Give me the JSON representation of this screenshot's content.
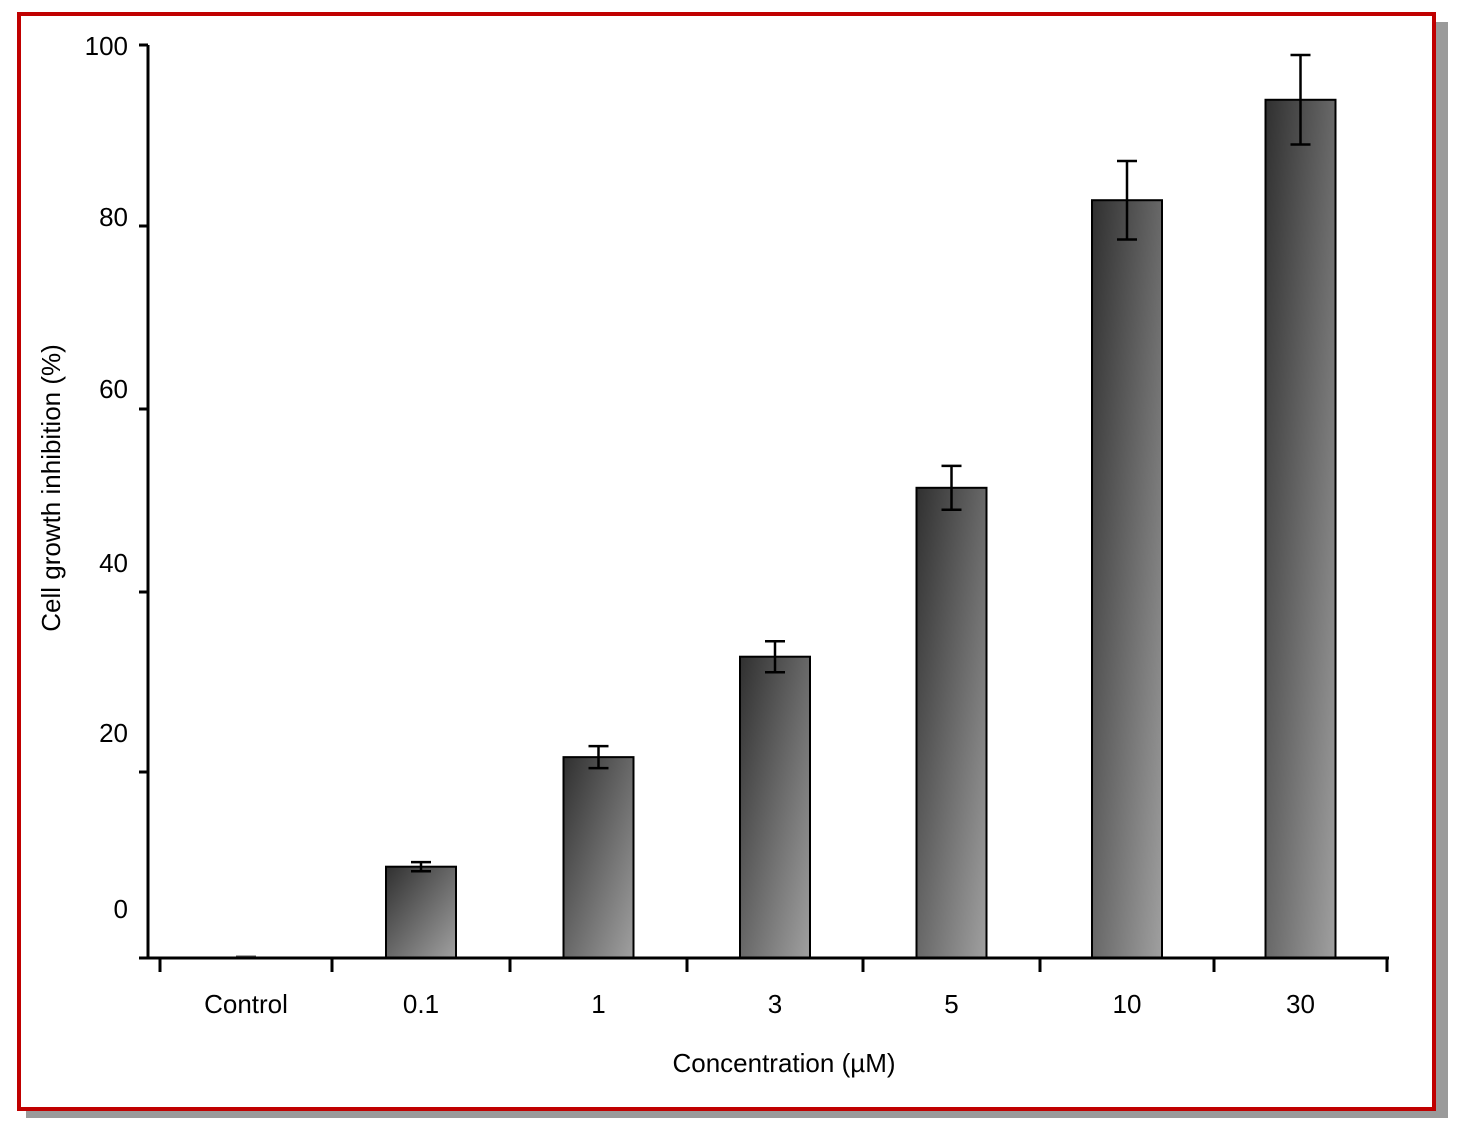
{
  "chart_data": {
    "type": "bar",
    "title": "",
    "xlabel": "Concentration (µM)",
    "ylabel": "Cell growth inhibition (%)",
    "ylim": [
      0,
      100
    ],
    "yticks": [
      "100",
      "80",
      "60",
      "40",
      "20",
      "0"
    ],
    "categories": [
      "Control",
      "0.1",
      "1",
      "3",
      "5",
      "10",
      "30"
    ],
    "values": [
      0,
      10,
      22,
      33,
      51.5,
      83,
      94
    ],
    "errors": [
      0,
      0.5,
      1.2,
      1.7,
      2.4,
      4.3,
      4.9
    ],
    "grid": false,
    "legend": "none",
    "colors": {
      "frame": "#c00000",
      "shadow": "#9a9a9a",
      "bar_dark": "#303030",
      "bar_light": "#a0a0a0",
      "axis": "#000000"
    }
  }
}
